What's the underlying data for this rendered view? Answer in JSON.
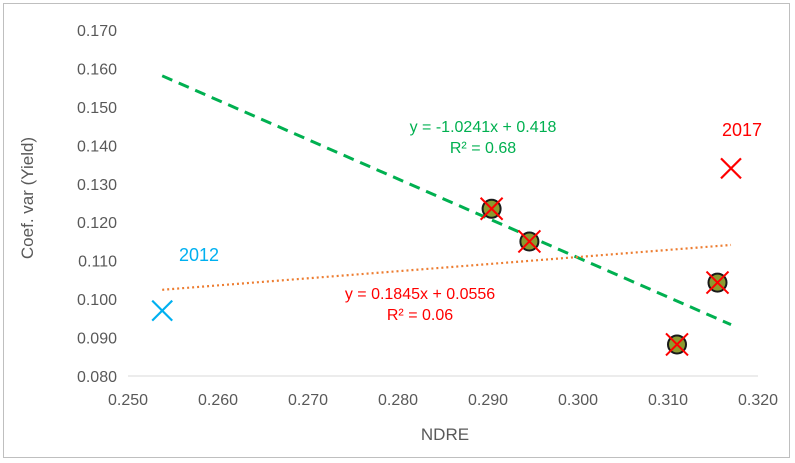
{
  "chart_data": {
    "type": "scatter",
    "title": "",
    "xlabel": "NDRE",
    "ylabel": "Coef. var (Yield)",
    "xlim": [
      0.25,
      0.32
    ],
    "ylim": [
      0.08,
      0.17
    ],
    "x_ticks": [
      "0.250",
      "0.260",
      "0.270",
      "0.280",
      "0.290",
      "0.300",
      "0.310",
      "0.320"
    ],
    "y_ticks": [
      "0.080",
      "0.090",
      "0.100",
      "0.110",
      "0.120",
      "0.130",
      "0.140",
      "0.150",
      "0.160",
      "0.170"
    ],
    "grid": false,
    "series": [
      {
        "marker": "circle-x",
        "color": "#8b9a2f",
        "points": [
          {
            "x": 0.2904,
            "y": 0.1235
          },
          {
            "x": 0.2946,
            "y": 0.115
          },
          {
            "x": 0.311,
            "y": 0.0882
          },
          {
            "x": 0.3155,
            "y": 0.1043
          }
        ]
      },
      {
        "marker": "x",
        "color": "#00b0f0",
        "points": [
          {
            "x": 0.2538,
            "y": 0.097
          }
        ]
      },
      {
        "marker": "x",
        "color": "#ff0000",
        "points": [
          {
            "x": 0.317,
            "y": 0.134
          }
        ]
      }
    ],
    "trendlines": [
      {
        "equation": "y = -1.0241x + 0.418",
        "r2": "R² = 0.68",
        "slope": -1.0241,
        "intercept": 0.418,
        "x_range": [
          0.2538,
          0.317
        ],
        "color": "#00b050",
        "style": "dashed"
      },
      {
        "equation": "y = 0.1845x + 0.0556",
        "r2": "R² = 0.06",
        "slope": 0.1845,
        "intercept": 0.0556,
        "x_range": [
          0.2538,
          0.317
        ],
        "color": "#ed7d31",
        "label_color": "#ff0000",
        "style": "dotted"
      }
    ],
    "annotations": [
      {
        "text": "2012",
        "color": "#00b0f0"
      },
      {
        "text": "2017",
        "color": "#ff0000"
      }
    ]
  }
}
